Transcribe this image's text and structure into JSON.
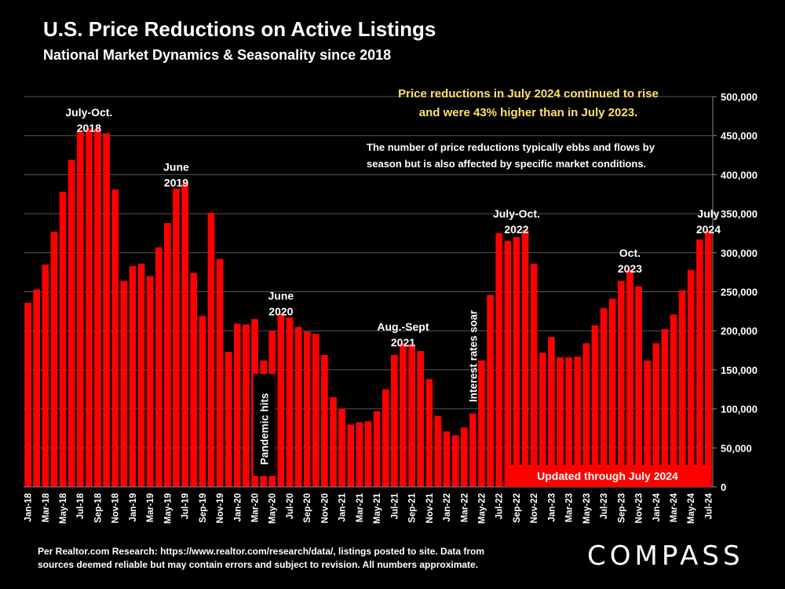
{
  "header": {
    "title": "U.S. Price Reductions on Active Listings",
    "subtitle": "National Market Dynamics & Seasonality since 2018"
  },
  "callout": {
    "highlight_line1": "Price reductions in July 2024 continued to rise",
    "highlight_line2": "and were 43% higher than in July 2023.",
    "note_line1": "The number of price reductions typically ebbs and flows by",
    "note_line2": "season but is also affected by specific market conditions.",
    "highlight_color": "#FFE066"
  },
  "updated_label": "Updated through July 2024",
  "footer": {
    "line1": "Per Realtor.com Research:  https://www.realtor.com/research/data/, listings posted to site. Data from",
    "line2": "sources deemed reliable but may contain errors and subject to revision. All numbers approximate."
  },
  "logo": "COMPASS",
  "colors": {
    "bar": "#FF0000",
    "background": "#000000",
    "grid": "#555555",
    "text": "#FFFFFF"
  },
  "chart_data": {
    "type": "bar",
    "title": "U.S. Price Reductions on Active Listings",
    "subtitle": "National Market Dynamics & Seasonality since 2018",
    "ylim": [
      0,
      500000
    ],
    "yticks": [
      0,
      50000,
      100000,
      150000,
      200000,
      250000,
      300000,
      350000,
      400000,
      450000,
      500000
    ],
    "ytick_labels": [
      "0",
      "50,000",
      "100,000",
      "150,000",
      "200,000",
      "250,000",
      "300,000",
      "350,000",
      "400,000",
      "450,000",
      "500,000"
    ],
    "grid": true,
    "categories": [
      "Jan-18",
      "Feb-18",
      "Mar-18",
      "Apr-18",
      "May-18",
      "Jun-18",
      "Jul-18",
      "Aug-18",
      "Sep-18",
      "Oct-18",
      "Nov-18",
      "Dec-18",
      "Jan-19",
      "Feb-19",
      "Mar-19",
      "Apr-19",
      "May-19",
      "Jun-19",
      "Jul-19",
      "Aug-19",
      "Sep-19",
      "Oct-19",
      "Nov-19",
      "Dec-19",
      "Jan-20",
      "Feb-20",
      "Mar-20",
      "Apr-20",
      "May-20",
      "Jun-20",
      "Jul-20",
      "Aug-20",
      "Sep-20",
      "Oct-20",
      "Nov-20",
      "Dec-20",
      "Jan-21",
      "Feb-21",
      "Mar-21",
      "Apr-21",
      "May-21",
      "Jun-21",
      "Jul-21",
      "Aug-21",
      "Sep-21",
      "Oct-21",
      "Nov-21",
      "Dec-21",
      "Jan-22",
      "Feb-22",
      "Mar-22",
      "Apr-22",
      "May-22",
      "Jun-22",
      "Jul-22",
      "Aug-22",
      "Sep-22",
      "Oct-22",
      "Nov-22",
      "Dec-22",
      "Jan-23",
      "Feb-23",
      "Mar-23",
      "Apr-23",
      "May-23",
      "Jun-23",
      "Jul-23",
      "Aug-23",
      "Sep-23",
      "Oct-23",
      "Nov-23",
      "Dec-23",
      "Jan-24",
      "Feb-24",
      "Mar-24",
      "Apr-24",
      "May-24",
      "Jun-24",
      "Jul-24"
    ],
    "x_tick_labels": [
      "Jan-18",
      "Mar-18",
      "May-18",
      "Jul-18",
      "Sep-18",
      "Nov-18",
      "Jan-19",
      "Mar-19",
      "May-19",
      "Jul-19",
      "Sep-19",
      "Nov-19",
      "Jan-20",
      "Mar-20",
      "May-20",
      "Jul-20",
      "Sep-20",
      "Nov-20",
      "Jan-21",
      "Mar-21",
      "May-21",
      "Jul-21",
      "Sep-21",
      "Nov-21",
      "Jan-22",
      "Mar-22",
      "May-22",
      "Jul-22",
      "Sep-22",
      "Nov-22",
      "Jan-23",
      "Mar-23",
      "May-23",
      "Jul-23",
      "Sep-23",
      "Nov-23",
      "Jan-24",
      "Mar-24",
      "May-24",
      "Jul-24"
    ],
    "values": [
      236000,
      253000,
      285000,
      327000,
      378000,
      419000,
      456000,
      459000,
      459000,
      453000,
      381000,
      264000,
      283000,
      286000,
      270000,
      307000,
      338000,
      382000,
      389000,
      274000,
      219000,
      351000,
      292000,
      173000,
      209000,
      208000,
      215000,
      162000,
      200000,
      222000,
      217000,
      205000,
      199000,
      196000,
      169000,
      115000,
      100000,
      80000,
      83000,
      84000,
      97000,
      125000,
      169000,
      184000,
      183000,
      174000,
      138000,
      91000,
      71000,
      66000,
      76000,
      94000,
      162000,
      246000,
      325000,
      315000,
      320000,
      329000,
      286000,
      172000,
      192000,
      166000,
      166000,
      167000,
      184000,
      207000,
      229000,
      241000,
      264000,
      278000,
      257000,
      162000,
      184000,
      202000,
      221000,
      252000,
      278000,
      317000,
      328000
    ],
    "annotations": [
      {
        "lines": [
          "July-Oct.",
          "2018"
        ],
        "category": "Aug-18",
        "y": 475000
      },
      {
        "lines": [
          "June",
          "2019"
        ],
        "category": "Jun-19",
        "y": 405000
      },
      {
        "lines": [
          "June",
          "2020"
        ],
        "category": "Jun-20",
        "y": 240000
      },
      {
        "lines": [
          "Aug.-Sept",
          "2021"
        ],
        "category": "Aug-21",
        "y": 200000
      },
      {
        "lines": [
          "July-Oct.",
          "2022"
        ],
        "category": "Sep-22",
        "y": 345000
      },
      {
        "lines": [
          "Oct.",
          "2023"
        ],
        "category": "Oct-23",
        "y": 295000
      },
      {
        "lines": [
          "July",
          "2024"
        ],
        "category": "Jul-24",
        "y": 345000
      }
    ],
    "event_labels": [
      {
        "text": "Pandemic hits",
        "category": "Apr-20"
      },
      {
        "text": "Interest rates soar",
        "category": "Apr-22"
      }
    ]
  }
}
